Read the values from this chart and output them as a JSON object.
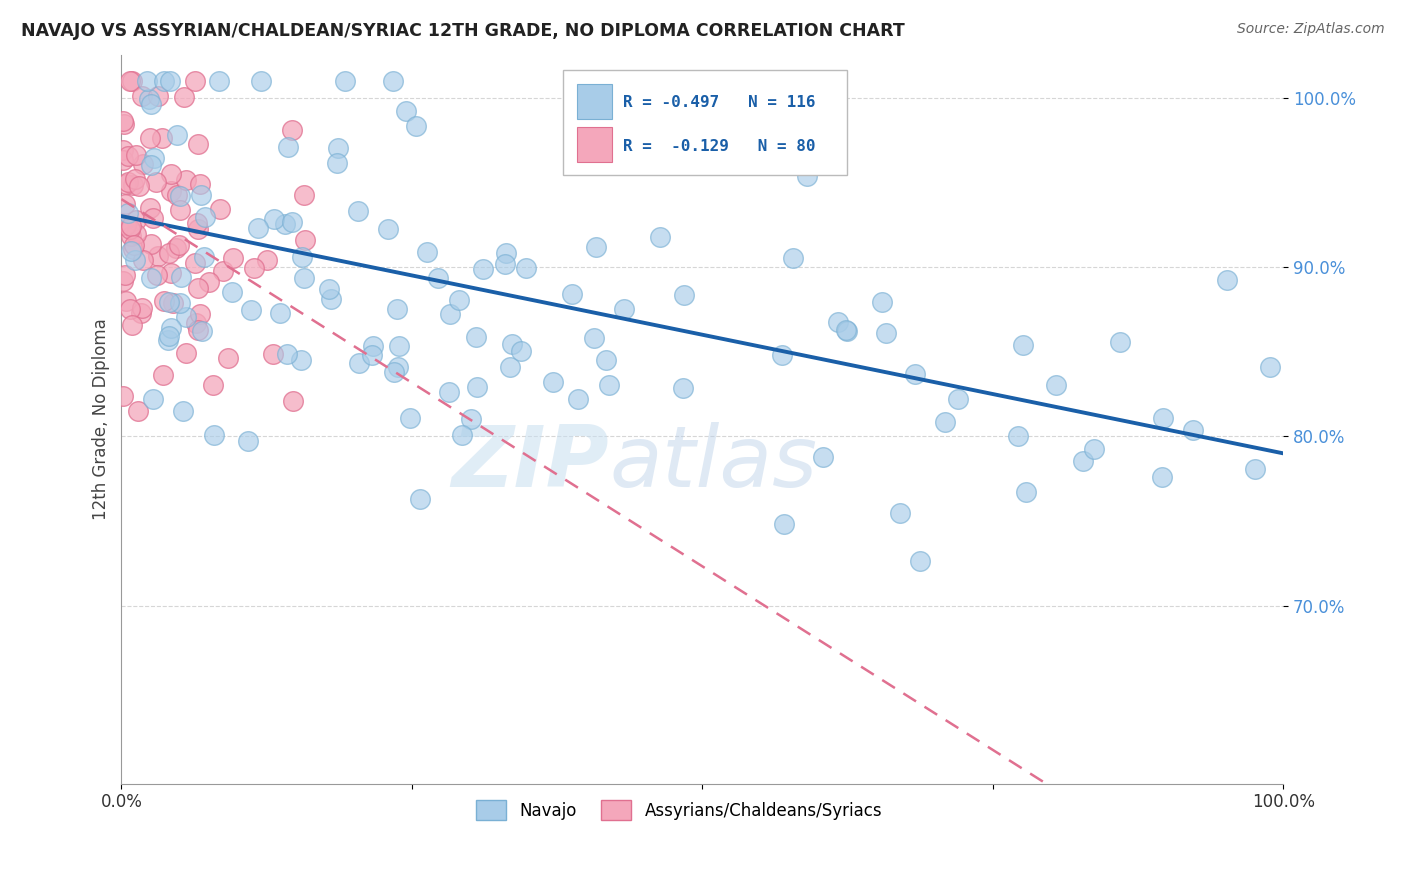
{
  "title": "NAVAJO VS ASSYRIAN/CHALDEAN/SYRIAC 12TH GRADE, NO DIPLOMA CORRELATION CHART",
  "source": "Source: ZipAtlas.com",
  "ylabel": "12th Grade, No Diploma",
  "legend_r1": "-0.497",
  "legend_n1": "116",
  "legend_r2": "-0.129",
  "legend_n2": "80",
  "legend_label1": "Navajo",
  "legend_label2": "Assyrians/Chaldeans/Syriacs",
  "watermark_zip": "ZIP",
  "watermark_atlas": "atlas",
  "blue_scatter_color": "#a8cce8",
  "blue_scatter_edge": "#7ab0d4",
  "pink_scatter_color": "#f4a7bb",
  "pink_scatter_edge": "#e07090",
  "blue_line_color": "#1a5fa8",
  "pink_line_color": "#e07090",
  "background_color": "#ffffff",
  "grid_color": "#cccccc",
  "xlim": [
    0.0,
    1.0
  ],
  "ylim": [
    0.595,
    1.025
  ],
  "blue_line_x0": 0.0,
  "blue_line_y0": 0.93,
  "blue_line_x1": 1.0,
  "blue_line_y1": 0.79,
  "pink_line_x0": 0.0,
  "pink_line_y0": 0.94,
  "pink_line_x1": 0.3,
  "pink_line_y1": 0.81
}
